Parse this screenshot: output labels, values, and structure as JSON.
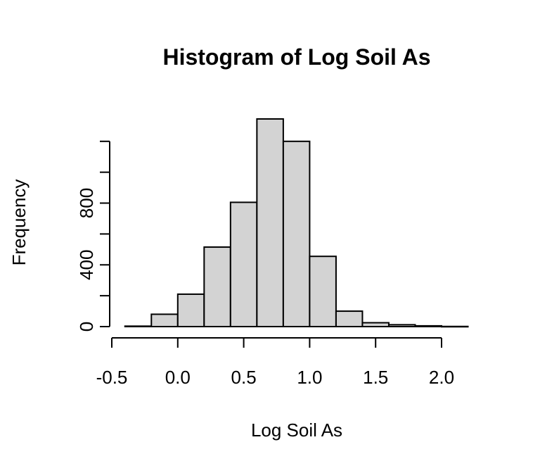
{
  "chart_data": {
    "type": "bar",
    "title": "Histogram of Log Soil As",
    "xlabel": "Log Soil As",
    "ylabel": "Frequency",
    "bin_edges": [
      -0.4,
      -0.2,
      0.0,
      0.2,
      0.4,
      0.6,
      0.8,
      1.0,
      1.2,
      1.4,
      1.6,
      1.8,
      2.0,
      2.2
    ],
    "values": [
      3,
      80,
      210,
      515,
      805,
      1345,
      1200,
      455,
      100,
      25,
      12,
      5,
      1
    ],
    "xlim": [
      -0.5,
      2.2
    ],
    "ylim": [
      0,
      1345
    ],
    "x_ticks": [
      -0.5,
      0.0,
      0.5,
      1.0,
      1.5,
      2.0
    ],
    "x_tick_labels": [
      "-0.5",
      "0.0",
      "0.5",
      "1.0",
      "1.5",
      "2.0"
    ],
    "y_ticks": [
      0,
      200,
      400,
      600,
      800,
      1000,
      1200
    ],
    "y_tick_labels": [
      "0",
      "",
      "400",
      "",
      "800",
      "",
      ""
    ],
    "bar_fill": "#d3d3d3",
    "bar_stroke": "#000000",
    "grid": false,
    "legend": "none"
  }
}
